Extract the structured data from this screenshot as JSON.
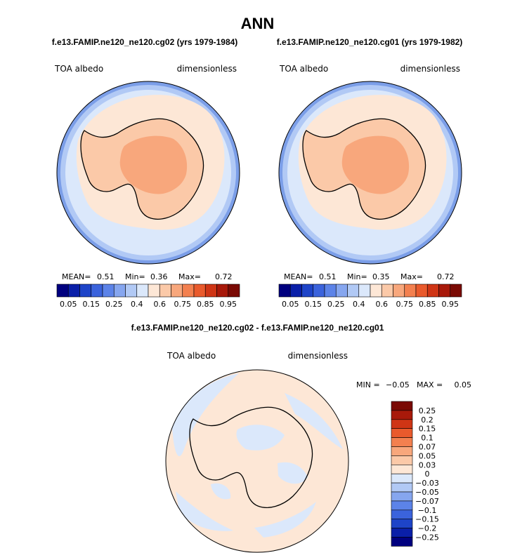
{
  "chart_data": [
    {
      "type": "heatmap",
      "projection": "south-polar-stereographic",
      "title": "ANN",
      "run": "f.e13.FAMIP.ne120_ne120.cg02 (yrs 1979-1984)",
      "variable": "TOA albedo",
      "units": "dimensionless",
      "stats": {
        "mean_label": "MEAN=",
        "mean": "0.51",
        "min_label": "Min=",
        "min": "0.36",
        "max_label": "Max=",
        "max": "0.72"
      },
      "colorbar": {
        "orientation": "horizontal",
        "levels": [
          "0.05",
          "0.1",
          "0.15",
          "0.2",
          "0.25",
          "0.3",
          "0.35",
          "0.4",
          "0.5",
          "0.6",
          "0.65",
          "0.75",
          "0.8",
          "0.85",
          "0.9",
          "0.95"
        ],
        "tick_labels": [
          "0.05",
          "0.15",
          "0.25",
          "0.4",
          "0.6",
          "0.75",
          "0.85",
          "0.95"
        ],
        "colors": [
          "#00007f",
          "#0a1fa8",
          "#1e44c8",
          "#3b63dc",
          "#5c83e8",
          "#86a6ef",
          "#b1c9f5",
          "#dbe8fb",
          "#fde7d6",
          "#fbc9a8",
          "#f8a77c",
          "#f3804f",
          "#e95a2c",
          "#cf3515",
          "#a8190a",
          "#7a0a04"
        ]
      },
      "regions": [
        {
          "name": "open-ocean-belt",
          "approx_value": 0.3
        },
        {
          "name": "subpolar-ocean",
          "approx_value": 0.38
        },
        {
          "name": "sea-ice-zone",
          "approx_value": 0.45
        },
        {
          "name": "antarctic-coast",
          "approx_value": 0.6
        },
        {
          "name": "antarctic-plateau",
          "approx_value": 0.67
        }
      ]
    },
    {
      "type": "heatmap",
      "projection": "south-polar-stereographic",
      "title": "ANN",
      "run": "f.e13.FAMIP.ne120_ne120.cg01 (yrs 1979-1982)",
      "variable": "TOA albedo",
      "units": "dimensionless",
      "stats": {
        "mean_label": "MEAN=",
        "mean": "0.51",
        "min_label": "Min=",
        "min": "0.35",
        "max_label": "Max=",
        "max": "0.72"
      },
      "colorbar": {
        "orientation": "horizontal",
        "levels": [
          "0.05",
          "0.1",
          "0.15",
          "0.2",
          "0.25",
          "0.3",
          "0.35",
          "0.4",
          "0.5",
          "0.6",
          "0.65",
          "0.75",
          "0.8",
          "0.85",
          "0.9",
          "0.95"
        ],
        "tick_labels": [
          "0.05",
          "0.15",
          "0.25",
          "0.4",
          "0.6",
          "0.75",
          "0.85",
          "0.95"
        ],
        "colors": [
          "#00007f",
          "#0a1fa8",
          "#1e44c8",
          "#3b63dc",
          "#5c83e8",
          "#86a6ef",
          "#b1c9f5",
          "#dbe8fb",
          "#fde7d6",
          "#fbc9a8",
          "#f8a77c",
          "#f3804f",
          "#e95a2c",
          "#cf3515",
          "#a8190a",
          "#7a0a04"
        ]
      },
      "regions": [
        {
          "name": "open-ocean-belt",
          "approx_value": 0.3
        },
        {
          "name": "subpolar-ocean",
          "approx_value": 0.38
        },
        {
          "name": "sea-ice-zone",
          "approx_value": 0.45
        },
        {
          "name": "antarctic-coast",
          "approx_value": 0.6
        },
        {
          "name": "antarctic-plateau",
          "approx_value": 0.67
        }
      ]
    },
    {
      "type": "heatmap",
      "projection": "south-polar-stereographic",
      "title": "f.e13.FAMIP.ne120_ne120.cg02 - f.e13.FAMIP.ne120_ne120.cg01",
      "variable": "TOA albedo",
      "units": "dimensionless",
      "stats": {
        "min_label": "MIN =",
        "min": "−0.05",
        "max_label": "MAX =",
        "max": "0.05"
      },
      "colorbar": {
        "orientation": "vertical",
        "tick_labels": [
          "0.25",
          "0.2",
          "0.15",
          "0.1",
          "0.07",
          "0.05",
          "0.03",
          "0",
          "−0.03",
          "−0.05",
          "−0.07",
          "−0.1",
          "−0.15",
          "−0.2",
          "−0.25"
        ],
        "colors": [
          "#7a0a04",
          "#a8190a",
          "#cf3515",
          "#e95a2c",
          "#f3804f",
          "#f8a77c",
          "#fbc9a8",
          "#fde7d6",
          "#dbe8fb",
          "#b1c9f5",
          "#86a6ef",
          "#5c83e8",
          "#3b63dc",
          "#1e44c8",
          "#0a1fa8",
          "#00007f"
        ]
      },
      "regions": [
        {
          "name": "background",
          "approx_value": 0.01
        },
        {
          "name": "negative-patches",
          "approx_value": -0.01
        }
      ]
    }
  ]
}
